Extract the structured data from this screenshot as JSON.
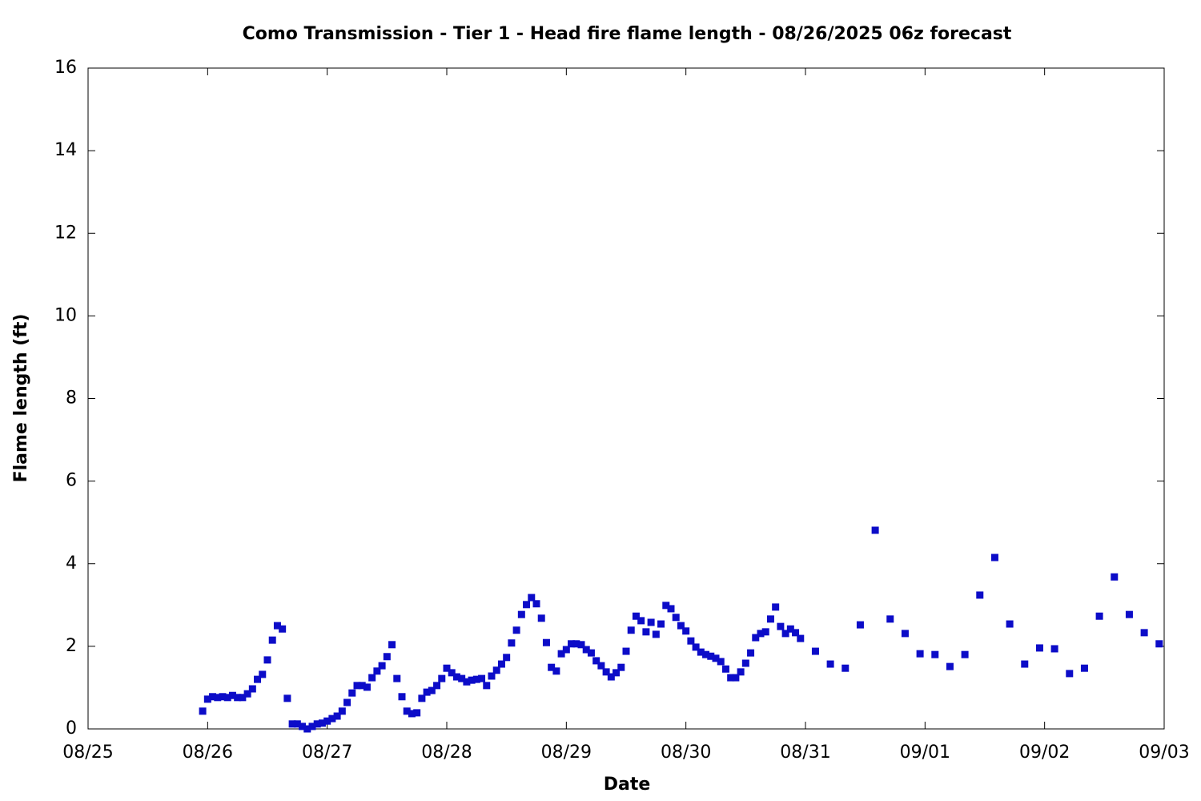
{
  "chart_data": {
    "type": "scatter",
    "title": "Como Transmission - Tier 1 - Head fire flame length - 08/26/2025 06z forecast",
    "x_label": "Date",
    "y_label": "Flame length (ft)",
    "xlim": [
      0,
      216
    ],
    "xticks": [
      {
        "value": 0,
        "label": "08/25"
      },
      {
        "value": 24,
        "label": "08/26"
      },
      {
        "value": 48,
        "label": "08/27"
      },
      {
        "value": 72,
        "label": "08/28"
      },
      {
        "value": 96,
        "label": "08/29"
      },
      {
        "value": 120,
        "label": "08/30"
      },
      {
        "value": 144,
        "label": "08/31"
      },
      {
        "value": 168,
        "label": "09/01"
      },
      {
        "value": 192,
        "label": "09/02"
      },
      {
        "value": 216,
        "label": "09/03"
      }
    ],
    "ylim": [
      0,
      16
    ],
    "yticks": [
      0,
      2,
      4,
      6,
      8,
      10,
      12,
      14,
      16
    ],
    "color": "#0c0cc8",
    "x": [
      23,
      24,
      25,
      26,
      27,
      28,
      29,
      30,
      31,
      32,
      33,
      34,
      35,
      36,
      37,
      38,
      39,
      40,
      41,
      42,
      43,
      44,
      45,
      46,
      47,
      48,
      49,
      50,
      51,
      52,
      53,
      54,
      55,
      56,
      57,
      58,
      59,
      60,
      61,
      62,
      63,
      64,
      65,
      66,
      67,
      68,
      69,
      70,
      71,
      72,
      73,
      74,
      75,
      76,
      77,
      78,
      79,
      80,
      81,
      82,
      83,
      84,
      85,
      86,
      87,
      88,
      89,
      90,
      91,
      92,
      93,
      94,
      95,
      96,
      97,
      98,
      99,
      100,
      101,
      102,
      103,
      104,
      105,
      106,
      107,
      108,
      109,
      110,
      111,
      112,
      113,
      114,
      115,
      116,
      117,
      118,
      119,
      120,
      121,
      122,
      123,
      124,
      125,
      126,
      127,
      128,
      129,
      130,
      131,
      132,
      133,
      134,
      135,
      136,
      137,
      138,
      139,
      140,
      141,
      142,
      143,
      146,
      149,
      152,
      155,
      158,
      161,
      164,
      167,
      170,
      173,
      176,
      179,
      182,
      185,
      188,
      191,
      194,
      197,
      200,
      203,
      206,
      209,
      212,
      215
    ],
    "values": [
      0.43,
      0.72,
      0.78,
      0.76,
      0.78,
      0.76,
      0.81,
      0.76,
      0.76,
      0.85,
      0.97,
      1.2,
      1.32,
      1.67,
      2.15,
      2.5,
      2.42,
      0.74,
      0.12,
      0.12,
      0.06,
      0.0,
      0.06,
      0.12,
      0.14,
      0.19,
      0.25,
      0.31,
      0.43,
      0.64,
      0.87,
      1.05,
      1.05,
      1.01,
      1.24,
      1.4,
      1.53,
      1.75,
      2.04,
      1.22,
      0.78,
      0.43,
      0.37,
      0.39,
      0.74,
      0.89,
      0.93,
      1.05,
      1.22,
      1.47,
      1.36,
      1.26,
      1.22,
      1.14,
      1.18,
      1.2,
      1.22,
      1.05,
      1.28,
      1.42,
      1.57,
      1.73,
      2.08,
      2.39,
      2.77,
      3.01,
      3.18,
      3.03,
      2.68,
      2.09,
      1.49,
      1.4,
      1.82,
      1.92,
      2.06,
      2.06,
      2.04,
      1.92,
      1.84,
      1.65,
      1.53,
      1.38,
      1.26,
      1.36,
      1.49,
      1.88,
      2.39,
      2.73,
      2.62,
      2.35,
      2.58,
      2.29,
      2.54,
      2.99,
      2.91,
      2.7,
      2.5,
      2.37,
      2.13,
      1.98,
      1.86,
      1.8,
      1.76,
      1.71,
      1.63,
      1.45,
      1.24,
      1.24,
      1.38,
      1.59,
      1.84,
      2.21,
      2.31,
      2.35,
      2.66,
      2.95,
      2.48,
      2.31,
      2.42,
      2.33,
      2.19,
      1.88,
      1.57,
      1.47,
      2.52,
      4.81,
      2.66,
      2.31,
      1.82,
      1.8,
      1.51,
      1.8,
      3.24,
      4.15,
      2.54,
      1.57,
      1.96,
      1.94,
      1.34,
      1.47,
      2.73,
      3.68,
      2.77,
      2.33,
      2.06
    ]
  }
}
